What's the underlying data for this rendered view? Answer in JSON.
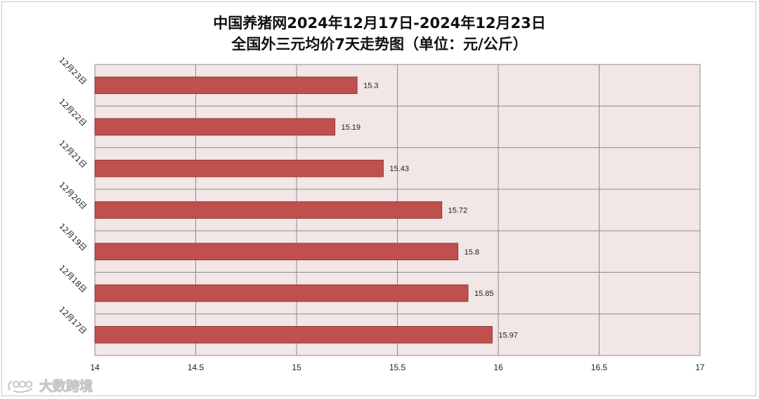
{
  "chart_data": {
    "type": "bar",
    "orientation": "horizontal",
    "title_line1": "中国养猪网2024年12月17日-2024年12月23日",
    "title_line2": "全国外三元均价7天走势图（单位：元/公斤）",
    "categories": [
      "12月23日",
      "12月22日",
      "12月21日",
      "12月20日",
      "12月19日",
      "12月18日",
      "12月17日"
    ],
    "values": [
      15.3,
      15.19,
      15.43,
      15.72,
      15.8,
      15.85,
      15.97
    ],
    "value_labels": [
      "15.3",
      "15.19",
      "15.43",
      "15.72",
      "15.8",
      "15.85",
      "15.97"
    ],
    "xlim": [
      14,
      17
    ],
    "x_ticks": [
      "14",
      "14.5",
      "15",
      "15.5",
      "16",
      "16.5",
      "17"
    ],
    "grid": true,
    "legend": "none",
    "colors": {
      "bar_fill": "#c0504d",
      "bar_stroke": "#8c3836",
      "plot_bg": "#f2e6e6",
      "grid": "#8c8c8c"
    }
  },
  "watermark": {
    "text": "大数跨境",
    "icon": "watermark-logo-icon"
  }
}
